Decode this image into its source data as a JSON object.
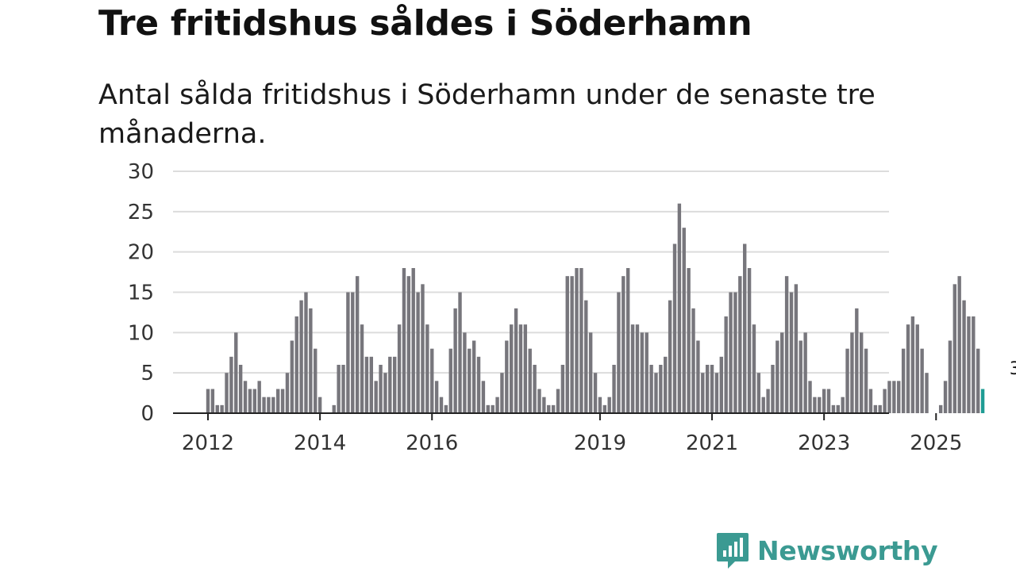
{
  "title": "Tre fritidshus såldes i Söderhamn",
  "subtitle": "Antal sålda fritidshus i Söderhamn under de senaste tre månaderna.",
  "brand": {
    "name": "Newsworthy",
    "color": "#3b9a92",
    "icon": "newsworthy-chart-bubble-icon"
  },
  "colors": {
    "bar": "#77767c",
    "highlight": "#1f9c94",
    "grid": "#dcdcdc",
    "axis": "#222222"
  },
  "chart_data": {
    "type": "bar",
    "title": "Tre fritidshus såldes i Söderhamn",
    "xlabel": "",
    "ylabel": "",
    "ylim": [
      0,
      30
    ],
    "yticks": [
      0,
      5,
      10,
      15,
      20,
      25,
      30
    ],
    "xticks": [
      {
        "label": "2012",
        "index": 0
      },
      {
        "label": "2014",
        "index": 24
      },
      {
        "label": "2016",
        "index": 48
      },
      {
        "label": "2019",
        "index": 84
      },
      {
        "label": "2021",
        "index": 108
      },
      {
        "label": "2023",
        "index": 132
      },
      {
        "label": "2025",
        "index": 156
      }
    ],
    "start": "2012-01",
    "frequency": "monthly",
    "values": [
      3,
      3,
      1,
      1,
      5,
      7,
      10,
      6,
      4,
      3,
      3,
      4,
      2,
      2,
      2,
      3,
      3,
      5,
      9,
      12,
      14,
      15,
      13,
      8,
      2,
      0,
      0,
      1,
      6,
      6,
      15,
      15,
      17,
      11,
      7,
      7,
      4,
      6,
      5,
      7,
      7,
      11,
      18,
      17,
      18,
      15,
      16,
      11,
      8,
      4,
      2,
      1,
      8,
      13,
      15,
      10,
      8,
      9,
      7,
      4,
      1,
      1,
      2,
      5,
      9,
      11,
      13,
      11,
      11,
      8,
      6,
      3,
      2,
      1,
      1,
      3,
      6,
      17,
      17,
      18,
      18,
      14,
      10,
      5,
      2,
      1,
      2,
      6,
      15,
      17,
      18,
      11,
      11,
      10,
      10,
      6,
      5,
      6,
      7,
      14,
      21,
      26,
      23,
      18,
      13,
      9,
      5,
      6,
      6,
      5,
      7,
      12,
      15,
      15,
      17,
      21,
      18,
      11,
      5,
      2,
      3,
      6,
      9,
      10,
      17,
      15,
      16,
      9,
      10,
      4,
      2,
      2,
      3,
      3,
      1,
      1,
      2,
      8,
      10,
      13,
      10,
      8,
      3,
      1,
      1,
      3,
      4,
      4,
      4,
      8,
      11,
      12,
      11,
      8,
      5,
      0,
      0,
      1,
      4,
      9,
      16,
      17,
      14,
      12,
      12,
      8,
      3
    ],
    "highlight_last": true,
    "annotation": {
      "index": 173,
      "label": "3"
    }
  }
}
